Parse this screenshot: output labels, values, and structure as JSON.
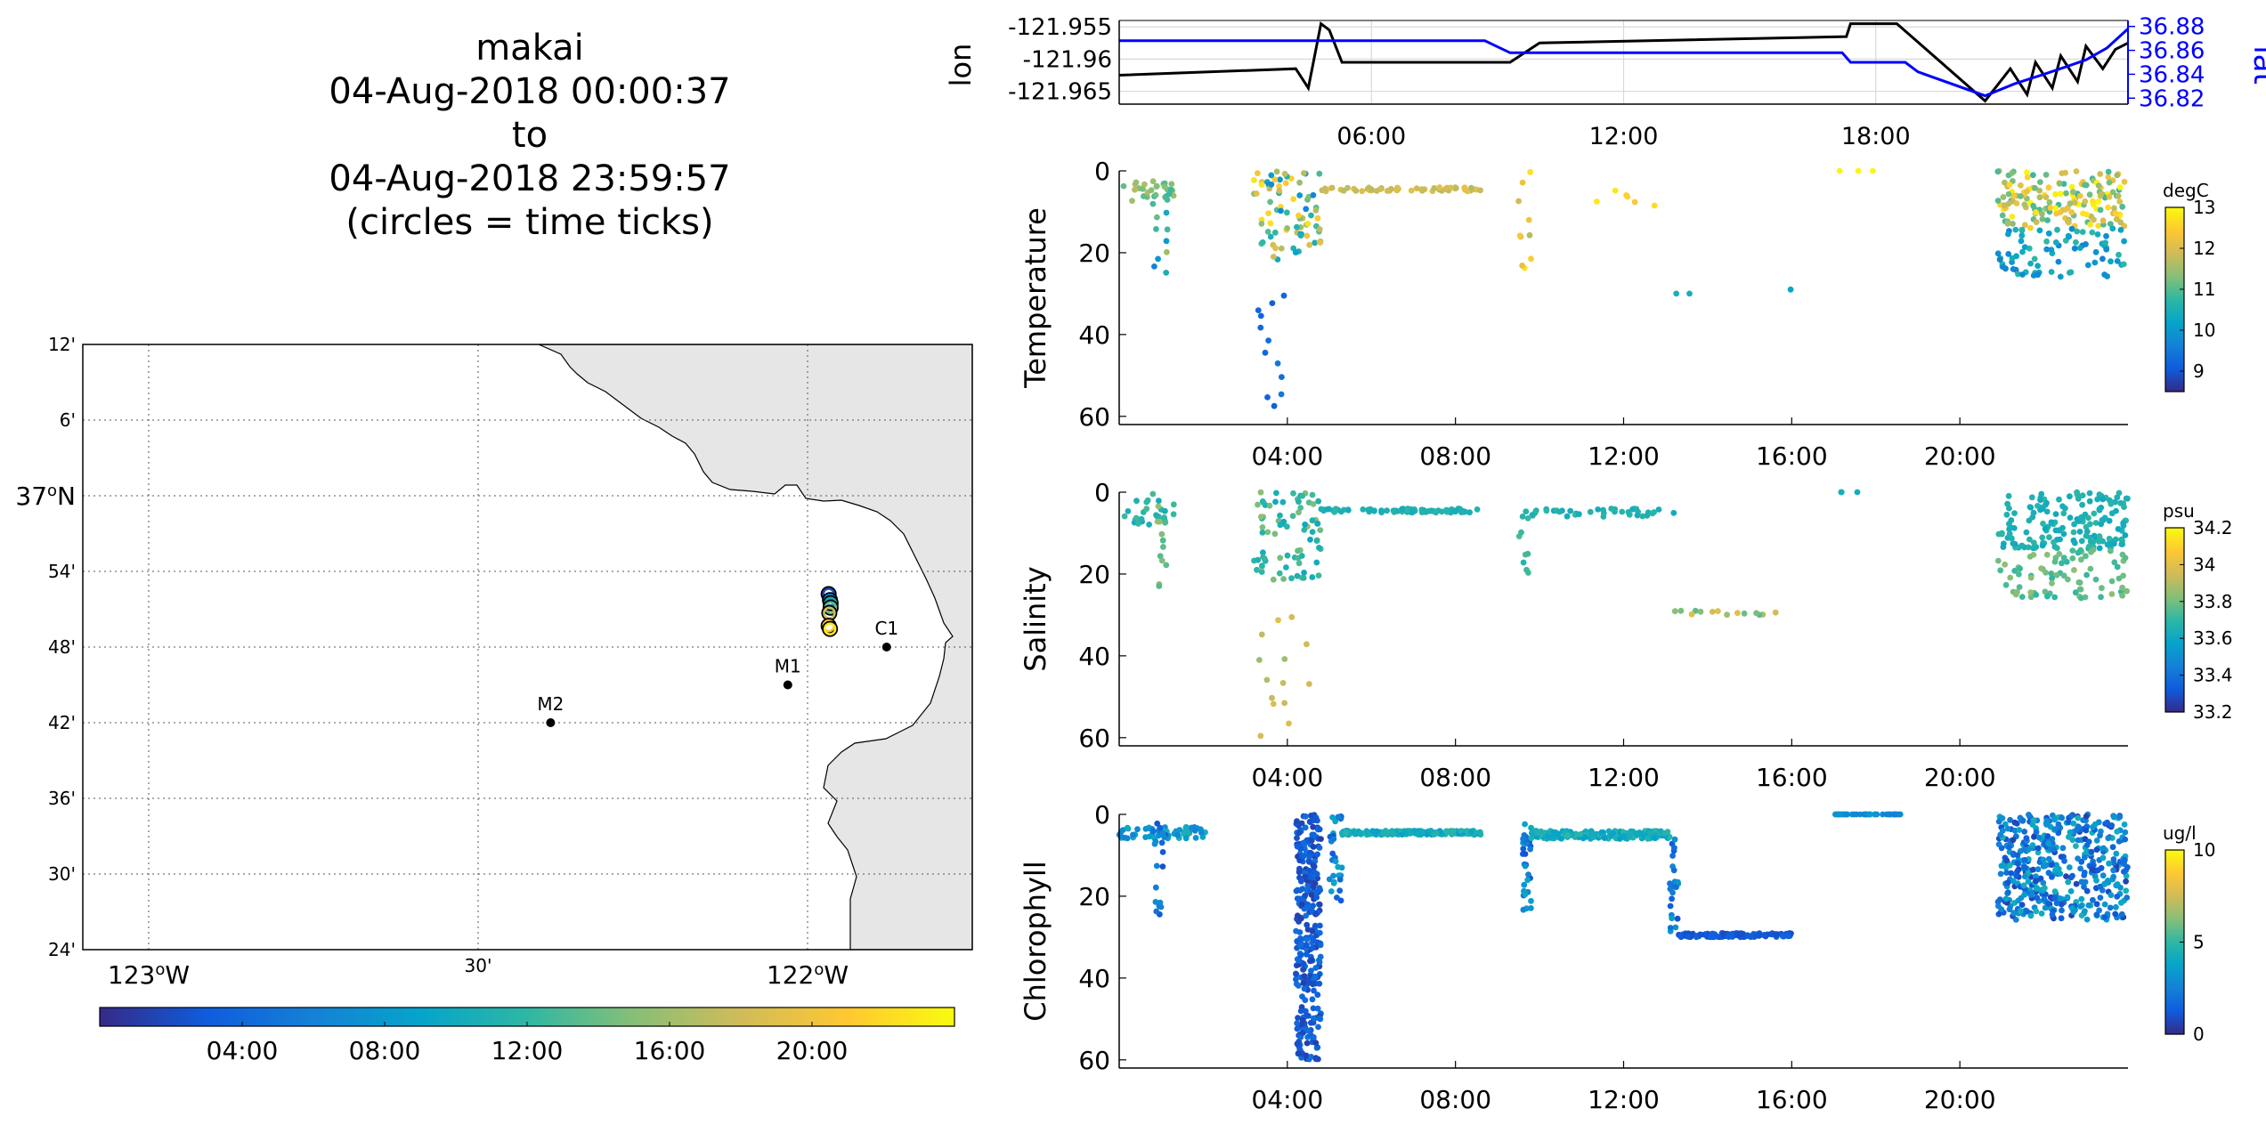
{
  "title": {
    "platform": "makai",
    "start": "04-Aug-2018 00:00:37",
    "to": "to",
    "end": "04-Aug-2018 23:59:57",
    "note": "(circles = time ticks)"
  },
  "colors": {
    "lat_axis": "#0000ff",
    "lon_line": "#000000",
    "land": "#e6e6e6",
    "parula": [
      "#352a87",
      "#0f5cdd",
      "#1481d6",
      "#06a4ca",
      "#2eb7a4",
      "#87bf77",
      "#d1bb59",
      "#fec832",
      "#f9fb0e"
    ]
  },
  "chart_data": [
    {
      "id": "map",
      "type": "scatter",
      "title": "",
      "lon_ticks": [
        "123°W",
        "30'",
        "122°W"
      ],
      "lat_ticks": [
        "12'",
        "6'",
        "37°N",
        "54'",
        "48'",
        "42'",
        "36'",
        "30'",
        "24'"
      ],
      "xlim": [
        -123.1,
        -121.75
      ],
      "ylim": [
        36.4,
        37.2
      ],
      "grid": true,
      "stations": [
        {
          "name": "M2",
          "lon": -122.39,
          "lat": 36.7
        },
        {
          "name": "M1",
          "lon": -122.03,
          "lat": 36.75
        },
        {
          "name": "C1",
          "lon": -121.88,
          "lat": 36.8
        }
      ],
      "track_points": [
        {
          "lon": -121.968,
          "lat": 36.87,
          "hour": 2
        },
        {
          "lon": -121.966,
          "lat": 36.862,
          "hour": 6
        },
        {
          "lon": -121.965,
          "lat": 36.858,
          "hour": 10
        },
        {
          "lon": -121.965,
          "lat": 36.852,
          "hour": 14
        },
        {
          "lon": -121.967,
          "lat": 36.845,
          "hour": 18
        },
        {
          "lon": -121.968,
          "lat": 36.828,
          "hour": 21
        },
        {
          "lon": -121.966,
          "lat": 36.824,
          "hour": 23
        }
      ],
      "colorbar": {
        "ticks": [
          "04:00",
          "08:00",
          "12:00",
          "16:00",
          "20:00"
        ],
        "range_hours": [
          0,
          24
        ]
      }
    },
    {
      "id": "position",
      "type": "line",
      "ylabel_left": "lon",
      "ylabel_right": "lat",
      "xlim_hours": [
        0,
        24
      ],
      "x_ticks": [
        "06:00",
        "12:00",
        "18:00"
      ],
      "lon_ticks": [
        "-121.955",
        "-121.96",
        "-121.965"
      ],
      "lon_range": [
        -121.967,
        -121.954
      ],
      "lat_ticks": [
        "36.88",
        "36.86",
        "36.84",
        "36.82"
      ],
      "lat_range": [
        36.815,
        36.885
      ],
      "grid": true,
      "series": [
        {
          "axis": "lon",
          "x": [
            0,
            4.2,
            4.5,
            4.8,
            5.0,
            5.3,
            9.3,
            10.0,
            17.3,
            17.4,
            18.5,
            20.6,
            21.2,
            21.6,
            21.8,
            22.2,
            22.4,
            22.8,
            23.0,
            23.4,
            23.7,
            24
          ],
          "y": [
            -121.9625,
            -121.9615,
            -121.9645,
            -121.9545,
            -121.9555,
            -121.9605,
            -121.9605,
            -121.9575,
            -121.9565,
            -121.9545,
            -121.9545,
            -121.9665,
            -121.9615,
            -121.9655,
            -121.9605,
            -121.9645,
            -121.9595,
            -121.9635,
            -121.958,
            -121.9615,
            -121.9585,
            -121.9575
          ]
        },
        {
          "axis": "lat",
          "x": [
            0,
            4.6,
            8.7,
            9.3,
            17.2,
            17.4,
            18.7,
            19.0,
            20.6,
            21.3,
            22.0,
            22.5,
            23.0,
            23.5,
            24
          ],
          "y": [
            36.868,
            36.868,
            36.868,
            36.858,
            36.858,
            36.85,
            36.85,
            36.842,
            36.822,
            36.832,
            36.84,
            36.846,
            36.852,
            36.862,
            36.878
          ]
        }
      ]
    },
    {
      "id": "temperature",
      "type": "scatter",
      "ylabel": "Temperature",
      "ylim": [
        62,
        0
      ],
      "y_ticks": [
        "0",
        "20",
        "40",
        "60"
      ],
      "xlim_hours": [
        0,
        24
      ],
      "x_ticks": [
        "04:00",
        "08:00",
        "12:00",
        "16:00",
        "20:00"
      ],
      "colorbar": {
        "unit": "degC",
        "range": [
          8.5,
          13
        ],
        "ticks": [
          "13",
          "12",
          "11",
          "10",
          "9"
        ]
      },
      "groups": [
        {
          "t": [
            0.1,
            1.3
          ],
          "d": [
            2,
            8
          ],
          "v": [
            10.8,
            11.8
          ],
          "n": 30
        },
        {
          "t": [
            0.8,
            1.2
          ],
          "d": [
            0,
            25
          ],
          "v": [
            9.5,
            11.5
          ],
          "n": 10
        },
        {
          "t": [
            3.2,
            4.8
          ],
          "d": [
            0,
            22
          ],
          "v": [
            9.6,
            12.8
          ],
          "n": 80
        },
        {
          "t": [
            3.3,
            4.1
          ],
          "d": [
            30,
            60
          ],
          "v": [
            9.1,
            9.7
          ],
          "n": 12
        },
        {
          "t": [
            4.8,
            8.6
          ],
          "d": [
            4,
            5
          ],
          "v": [
            11.6,
            12.2
          ],
          "n": 60
        },
        {
          "t": [
            9.5,
            9.8
          ],
          "d": [
            0,
            24
          ],
          "v": [
            11.0,
            12.8
          ],
          "n": 10
        },
        {
          "t": [
            10.5,
            13.0
          ],
          "d": [
            4,
            9
          ],
          "v": [
            12.3,
            12.8
          ],
          "n": 6
        },
        {
          "t": [
            13.2,
            13.6
          ],
          "d": [
            30,
            30
          ],
          "v": [
            10.2,
            10.5
          ],
          "n": 2
        },
        {
          "t": [
            15.9,
            16.0
          ],
          "d": [
            29,
            29
          ],
          "v": [
            10.2,
            10.4
          ],
          "n": 1
        },
        {
          "t": [
            17.0,
            18.6
          ],
          "d": [
            0,
            0
          ],
          "v": [
            12.9,
            13.0
          ],
          "n": 3
        },
        {
          "t": [
            20.9,
            24
          ],
          "d": [
            0,
            14
          ],
          "v": [
            10.8,
            13.0
          ],
          "n": 160
        },
        {
          "t": [
            20.9,
            24
          ],
          "d": [
            14,
            26
          ],
          "v": [
            9.6,
            10.8
          ],
          "n": 80
        }
      ]
    },
    {
      "id": "salinity",
      "type": "scatter",
      "ylabel": "Salinity",
      "ylim": [
        62,
        0
      ],
      "y_ticks": [
        "0",
        "20",
        "40",
        "60"
      ],
      "xlim_hours": [
        0,
        24
      ],
      "x_ticks": [
        "04:00",
        "08:00",
        "12:00",
        "16:00",
        "20:00"
      ],
      "colorbar": {
        "unit": "psu",
        "range": [
          33.2,
          34.2
        ],
        "ticks": [
          "34.2",
          "34",
          "33.8",
          "33.6",
          "33.4",
          "33.2"
        ]
      },
      "groups": [
        {
          "t": [
            0.1,
            1.3
          ],
          "d": [
            2,
            8
          ],
          "v": [
            33.6,
            33.75
          ],
          "n": 30
        },
        {
          "t": [
            0.8,
            1.2
          ],
          "d": [
            0,
            25
          ],
          "v": [
            33.7,
            33.9
          ],
          "n": 12
        },
        {
          "t": [
            3.2,
            4.8
          ],
          "d": [
            0,
            22
          ],
          "v": [
            33.6,
            33.85
          ],
          "n": 80
        },
        {
          "t": [
            3.3,
            4.6
          ],
          "d": [
            30,
            60
          ],
          "v": [
            33.85,
            34.0
          ],
          "n": 14
        },
        {
          "t": [
            4.8,
            8.6
          ],
          "d": [
            4,
            5
          ],
          "v": [
            33.62,
            33.7
          ],
          "n": 70
        },
        {
          "t": [
            9.5,
            13.2
          ],
          "d": [
            4,
            6
          ],
          "v": [
            33.62,
            33.7
          ],
          "n": 40
        },
        {
          "t": [
            9.5,
            9.8
          ],
          "d": [
            0,
            20
          ],
          "v": [
            33.65,
            33.75
          ],
          "n": 8
        },
        {
          "t": [
            13.2,
            16.0
          ],
          "d": [
            29,
            30
          ],
          "v": [
            33.75,
            34.0
          ],
          "n": 14
        },
        {
          "t": [
            17.0,
            18.6
          ],
          "d": [
            0,
            0
          ],
          "v": [
            33.62,
            33.65
          ],
          "n": 3
        },
        {
          "t": [
            20.9,
            24
          ],
          "d": [
            0,
            14
          ],
          "v": [
            33.6,
            33.7
          ],
          "n": 160
        },
        {
          "t": [
            20.9,
            24
          ],
          "d": [
            14,
            26
          ],
          "v": [
            33.7,
            33.85
          ],
          "n": 80
        }
      ]
    },
    {
      "id": "chlorophyll",
      "type": "scatter",
      "ylabel": "Chlorophyll",
      "ylim": [
        62,
        0
      ],
      "y_ticks": [
        "0",
        "20",
        "40",
        "60"
      ],
      "xlim_hours": [
        0,
        24
      ],
      "x_ticks": [
        "04:00",
        "08:00",
        "12:00",
        "16:00",
        "20:00"
      ],
      "colorbar": {
        "unit": "ug/l",
        "range": [
          0,
          10
        ],
        "ticks": [
          "10",
          "5",
          "0"
        ]
      },
      "groups": [
        {
          "t": [
            0.0,
            2.1
          ],
          "d": [
            3,
            6
          ],
          "v": [
            2.5,
            4.5
          ],
          "n": 60
        },
        {
          "t": [
            0.8,
            1.1
          ],
          "d": [
            0,
            25
          ],
          "v": [
            0.8,
            3.0
          ],
          "n": 20
        },
        {
          "t": [
            4.2,
            4.8
          ],
          "d": [
            0,
            60
          ],
          "v": [
            0.5,
            2.0
          ],
          "n": 300
        },
        {
          "t": [
            5.0,
            5.3
          ],
          "d": [
            0,
            23
          ],
          "v": [
            1.0,
            4.0
          ],
          "n": 30
        },
        {
          "t": [
            5.3,
            8.6
          ],
          "d": [
            4,
            5
          ],
          "v": [
            3.5,
            5.0
          ],
          "n": 200
        },
        {
          "t": [
            9.6,
            9.8
          ],
          "d": [
            0,
            24
          ],
          "v": [
            1.0,
            4.0
          ],
          "n": 30
        },
        {
          "t": [
            9.8,
            13.1
          ],
          "d": [
            4,
            6
          ],
          "v": [
            3.5,
            5.0
          ],
          "n": 200
        },
        {
          "t": [
            13.1,
            13.3
          ],
          "d": [
            6,
            30
          ],
          "v": [
            1.0,
            3.5
          ],
          "n": 25
        },
        {
          "t": [
            13.3,
            16.0
          ],
          "d": [
            29,
            30
          ],
          "v": [
            0.8,
            1.5
          ],
          "n": 120
        },
        {
          "t": [
            17.0,
            18.6
          ],
          "d": [
            0,
            0
          ],
          "v": [
            2.5,
            3.5
          ],
          "n": 40
        },
        {
          "t": [
            20.9,
            24
          ],
          "d": [
            0,
            26
          ],
          "v": [
            0.5,
            4.5
          ],
          "n": 450
        }
      ]
    }
  ]
}
